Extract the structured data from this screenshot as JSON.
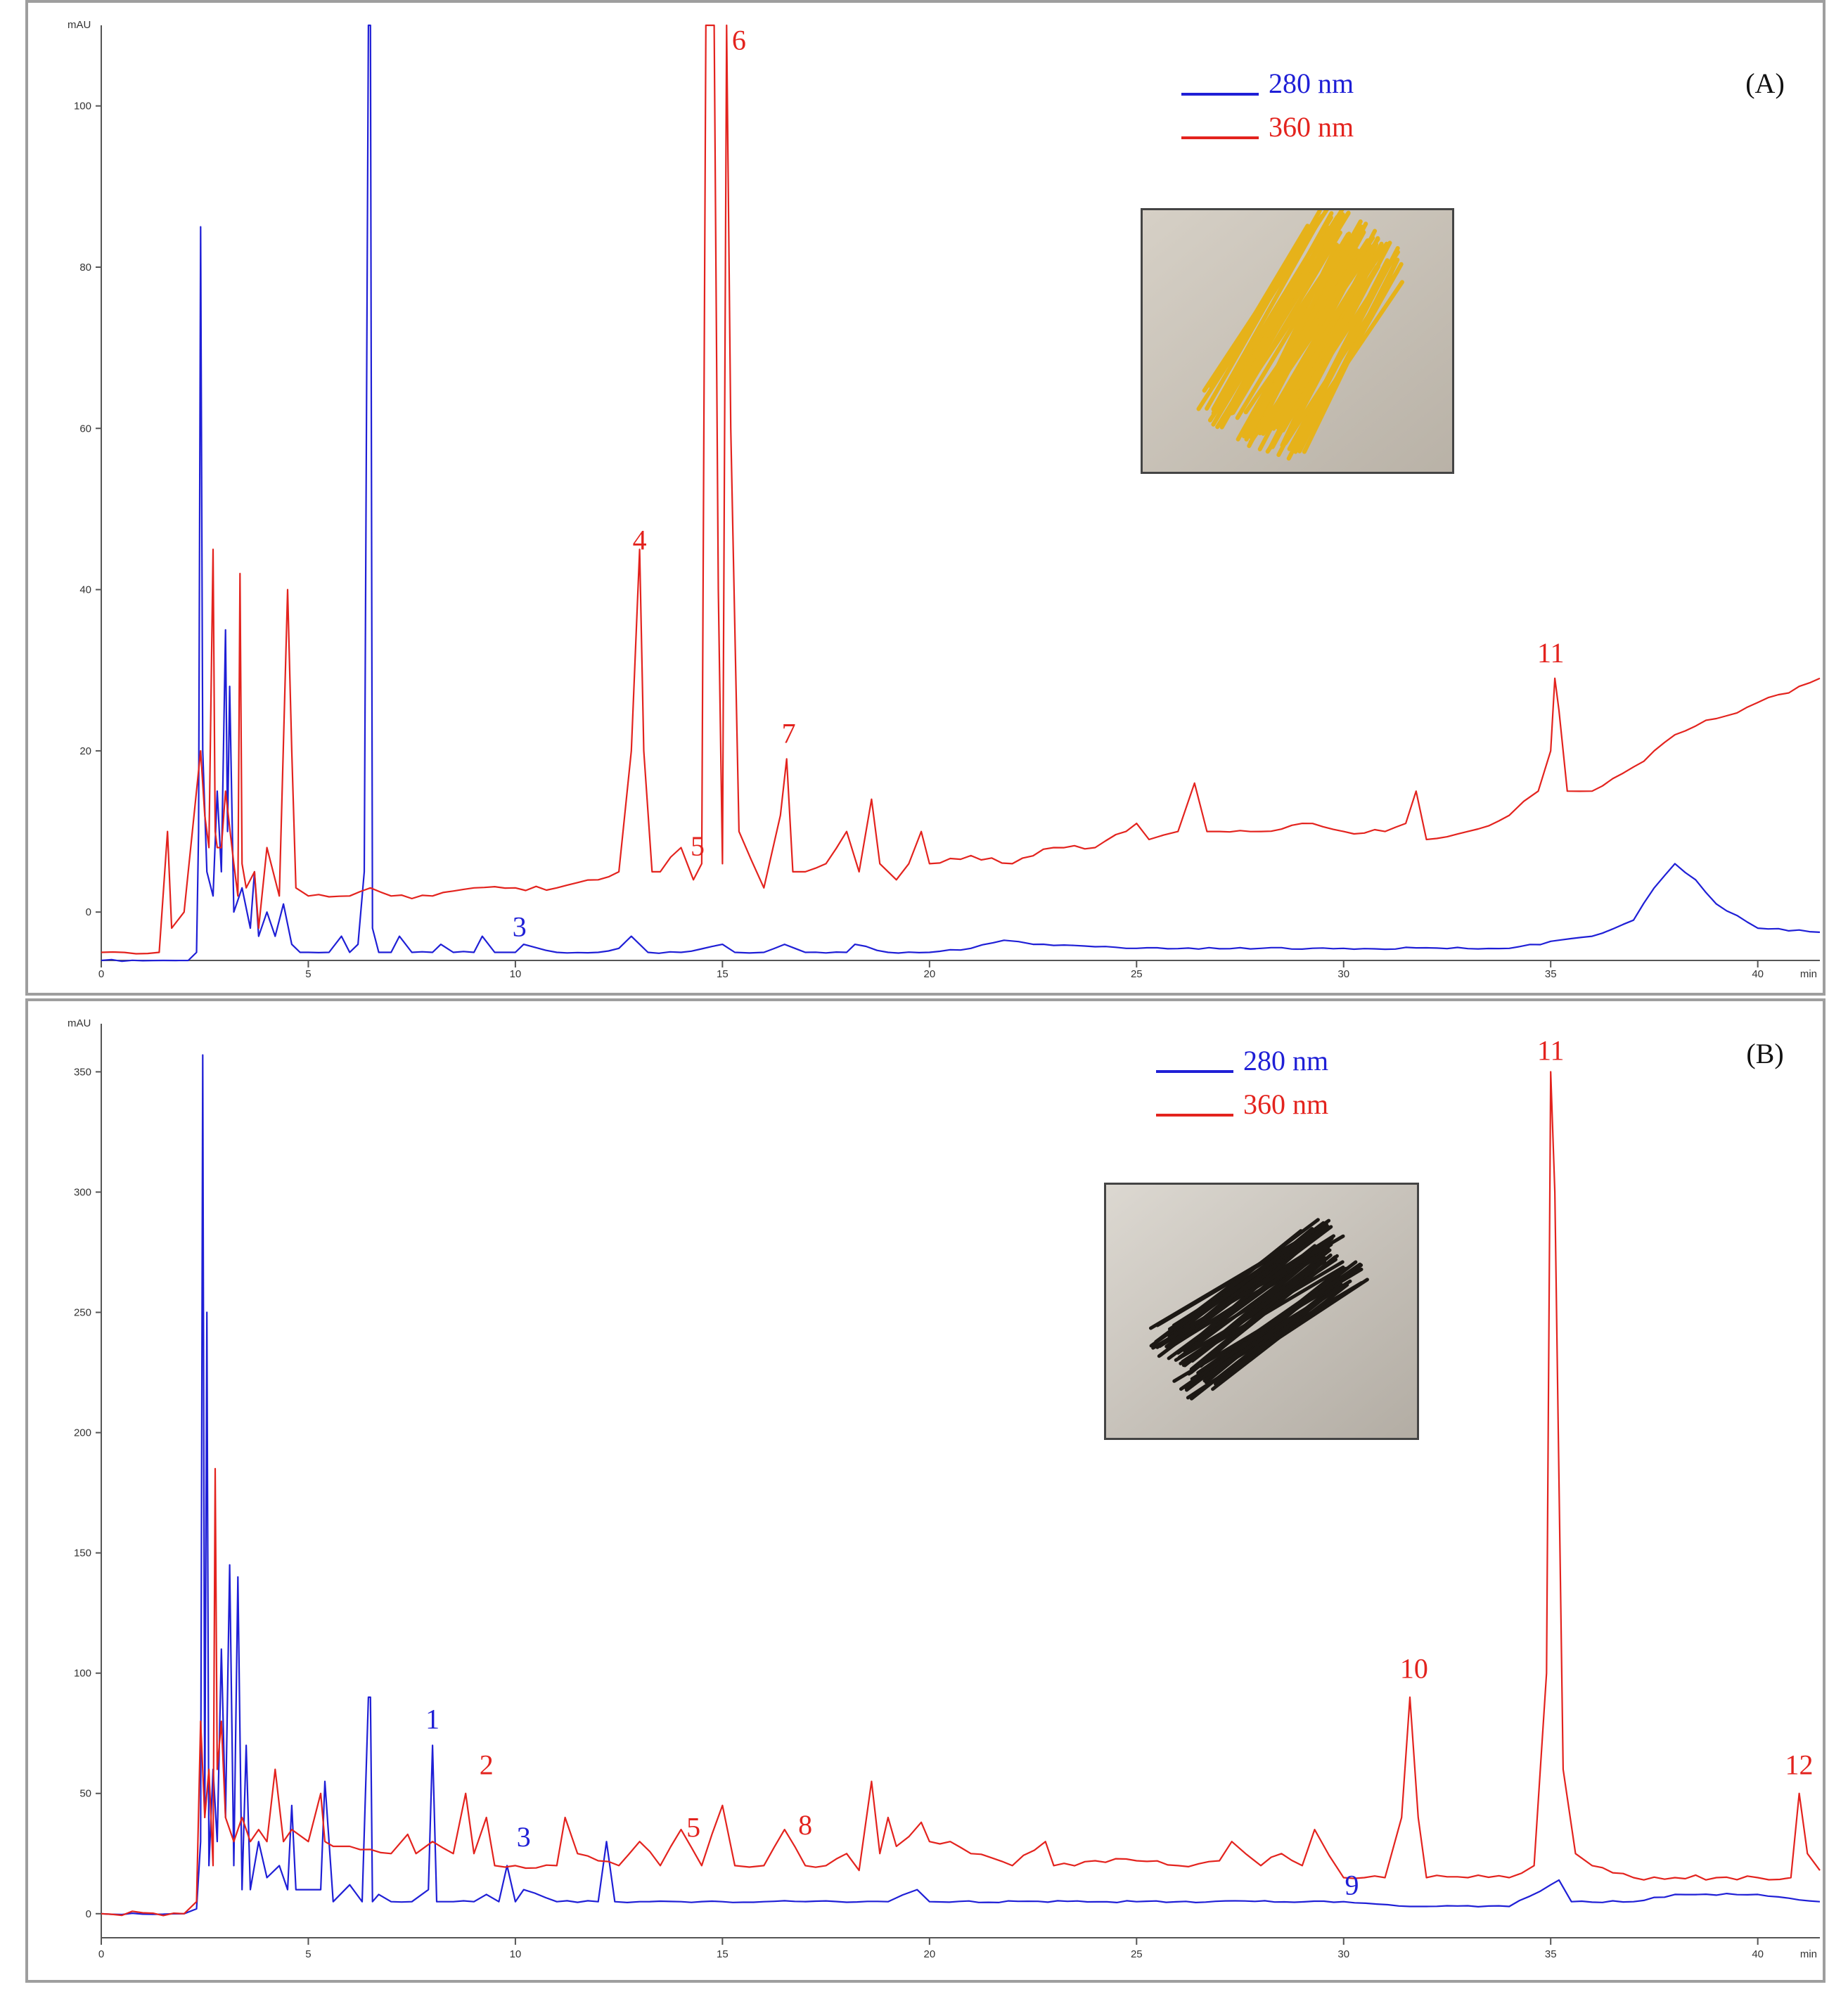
{
  "colors": {
    "blue": "#1f1fd6",
    "red": "#e3231e"
  },
  "chart_data": [
    {
      "type": "line",
      "panel_label": "(A)",
      "ylabel": "mAU",
      "xunit": "min",
      "xlim": [
        0,
        41.5
      ],
      "ylim": [
        -6,
        110
      ],
      "x_ticks": [
        0,
        5,
        10,
        15,
        20,
        25,
        30,
        35,
        40
      ],
      "y_ticks": [
        0,
        20,
        40,
        60,
        80,
        100
      ],
      "legend": [
        {
          "label": "280 nm",
          "color": "#1f1fd6"
        },
        {
          "label": "360 nm",
          "color": "#e3231e"
        }
      ],
      "photo": "yellow-pasta-strands",
      "series": [
        {
          "name": "280 nm",
          "color": "#1f1fd6",
          "x": [
            0,
            1.5,
            2.1,
            2.3,
            2.35,
            2.4,
            2.45,
            2.55,
            2.7,
            2.8,
            2.9,
            3.0,
            3.05,
            3.1,
            3.2,
            3.4,
            3.6,
            3.7,
            3.8,
            4.0,
            4.2,
            4.4,
            4.6,
            4.8,
            5.0,
            5.5,
            5.8,
            6.0,
            6.2,
            6.35,
            6.45,
            6.5,
            6.55,
            6.7,
            7.0,
            7.2,
            7.5,
            8.0,
            8.2,
            8.5,
            9.0,
            9.2,
            9.5,
            10.0,
            10.2,
            11,
            12,
            12.5,
            12.8,
            13.2,
            14,
            15,
            15.3,
            16,
            16.5,
            17,
            18,
            18.2,
            19,
            20,
            21,
            21.8,
            22.5,
            25,
            28,
            30,
            34,
            36,
            37,
            37.5,
            38,
            38.5,
            39,
            40,
            41.5
          ],
          "y": [
            -6,
            -6,
            -6,
            -5,
            10,
            85,
            20,
            5,
            2,
            15,
            5,
            35,
            10,
            28,
            0,
            3,
            -2,
            5,
            -3,
            0,
            -3,
            1,
            -4,
            -5,
            -5,
            -5,
            -3,
            -5,
            -4,
            5,
            110,
            110,
            -2,
            -5,
            -5,
            -3,
            -5,
            -5,
            -4,
            -5,
            -5,
            -3,
            -5,
            -5,
            -4,
            -5,
            -5,
            -4.5,
            -3,
            -5,
            -5,
            -4,
            -5,
            -5,
            -4,
            -5,
            -5,
            -4,
            -5,
            -5,
            -4.5,
            -3.5,
            -4,
            -4.5,
            -4.5,
            -4.5,
            -4.5,
            -3,
            -1,
            3,
            6,
            4,
            1,
            -2,
            -2.5
          ]
        },
        {
          "name": "360 nm",
          "color": "#e3231e",
          "x": [
            0,
            1.4,
            1.6,
            1.7,
            2.0,
            2.4,
            2.5,
            2.6,
            2.7,
            2.75,
            2.8,
            2.9,
            3.0,
            3.2,
            3.3,
            3.35,
            3.4,
            3.5,
            3.7,
            3.8,
            4.0,
            4.3,
            4.5,
            4.6,
            4.7,
            5.0,
            6.0,
            6.5,
            7.0,
            8,
            9,
            10,
            11,
            12,
            12.5,
            12.8,
            13.0,
            13.1,
            13.3,
            13.5,
            14,
            14.3,
            14.5,
            14.6,
            14.8,
            14.9,
            15.0,
            15.1,
            15.2,
            15.4,
            16,
            16.4,
            16.55,
            16.7,
            17,
            17.5,
            18,
            18.3,
            18.6,
            18.8,
            19.2,
            19.5,
            19.8,
            20,
            21,
            22,
            23,
            24,
            25,
            25.3,
            26,
            26.4,
            26.7,
            27,
            28,
            29,
            30,
            31,
            31.5,
            31.75,
            32,
            33,
            34,
            34.7,
            35.0,
            35.1,
            35.2,
            35.4,
            36,
            37,
            37.5,
            38,
            39,
            40,
            41,
            41.5
          ],
          "y": [
            -5,
            -5,
            10,
            -2,
            0,
            20,
            12,
            8,
            45,
            10,
            8,
            8,
            15,
            6,
            2,
            42,
            6,
            3,
            5,
            -2,
            8,
            2,
            40,
            20,
            3,
            2,
            2,
            3,
            2,
            2,
            3,
            3,
            3,
            4,
            5,
            20,
            45,
            20,
            5,
            5,
            8,
            4,
            6,
            110,
            110,
            40,
            6,
            110,
            60,
            10,
            3,
            12,
            19,
            5,
            5,
            6,
            10,
            5,
            14,
            6,
            4,
            6,
            10,
            6,
            7,
            6,
            8,
            8,
            11,
            9,
            10,
            16,
            10,
            10,
            10,
            11,
            10,
            10,
            11,
            15,
            9,
            10,
            12,
            15,
            20,
            29,
            25,
            15,
            15,
            18,
            20,
            22,
            24,
            26,
            28,
            29
          ]
        }
      ],
      "peak_labels": [
        {
          "label": "4",
          "x": 13.0,
          "y": 45,
          "color": "#e3231e"
        },
        {
          "label": "6",
          "x": 15.4,
          "y": 107,
          "color": "#e3231e"
        },
        {
          "label": "5",
          "x": 14.4,
          "y": 7,
          "color": "#e3231e"
        },
        {
          "label": "7",
          "x": 16.6,
          "y": 21,
          "color": "#e3231e"
        },
        {
          "label": "11",
          "x": 35.0,
          "y": 31,
          "color": "#e3231e"
        },
        {
          "label": "3",
          "x": 10.1,
          "y": -3,
          "color": "#1f1fd6"
        }
      ]
    },
    {
      "type": "line",
      "panel_label": "(B)",
      "ylabel": "mAU",
      "xunit": "min",
      "xlim": [
        0,
        41.5
      ],
      "ylim": [
        -10,
        370
      ],
      "x_ticks": [
        0,
        5,
        10,
        15,
        20,
        25,
        30,
        35,
        40
      ],
      "y_ticks": [
        0,
        50,
        100,
        150,
        200,
        250,
        300,
        350
      ],
      "legend": [
        {
          "label": "280 nm",
          "color": "#1f1fd6"
        },
        {
          "label": "360 nm",
          "color": "#e3231e"
        }
      ],
      "photo": "black-pasta-strands",
      "series": [
        {
          "name": "280 nm",
          "color": "#1f1fd6",
          "x": [
            0,
            2.0,
            2.3,
            2.4,
            2.45,
            2.5,
            2.55,
            2.6,
            2.7,
            2.8,
            2.9,
            3.0,
            3.1,
            3.2,
            3.3,
            3.4,
            3.5,
            3.6,
            3.8,
            4.0,
            4.3,
            4.5,
            4.6,
            4.7,
            5.0,
            5.3,
            5.4,
            5.6,
            6.0,
            6.3,
            6.45,
            6.5,
            6.55,
            6.7,
            7.0,
            7.5,
            7.9,
            8.0,
            8.1,
            8.5,
            9.0,
            9.3,
            9.6,
            9.8,
            10,
            10.2,
            11,
            12.0,
            12.2,
            12.4,
            13,
            14,
            15,
            16,
            19,
            19.7,
            20,
            25,
            30,
            31.6,
            32,
            34,
            35.0,
            35.2,
            35.5,
            37,
            38,
            40,
            41.5
          ],
          "y": [
            0,
            0,
            2,
            30,
            357,
            40,
            250,
            20,
            60,
            30,
            110,
            40,
            145,
            20,
            140,
            10,
            70,
            10,
            30,
            15,
            20,
            10,
            45,
            10,
            10,
            10,
            55,
            5,
            12,
            5,
            90,
            90,
            5,
            8,
            5,
            5,
            10,
            70,
            5,
            5,
            5,
            8,
            5,
            20,
            5,
            10,
            5,
            5,
            30,
            5,
            5,
            5,
            5,
            5,
            5,
            10,
            5,
            5,
            5,
            3,
            3,
            3,
            12,
            14,
            5,
            5,
            8,
            8,
            5
          ]
        },
        {
          "name": "360 nm",
          "color": "#e3231e",
          "x": [
            0,
            2.0,
            2.3,
            2.4,
            2.5,
            2.6,
            2.7,
            2.75,
            2.8,
            2.9,
            3.0,
            3.2,
            3.4,
            3.6,
            3.8,
            4.0,
            4.2,
            4.4,
            4.6,
            5.0,
            5.3,
            5.4,
            5.6,
            6,
            7,
            7.4,
            7.6,
            8.0,
            8.5,
            8.8,
            9,
            9.3,
            9.5,
            10,
            11,
            11.2,
            11.5,
            12,
            12.5,
            13,
            13.5,
            14,
            14.5,
            15,
            15.3,
            16,
            16.5,
            17,
            17.5,
            18,
            18.3,
            18.6,
            18.8,
            19,
            19.2,
            19.5,
            19.8,
            20,
            20.5,
            21,
            22,
            22.8,
            23,
            24,
            25,
            26,
            27,
            27.3,
            28,
            28.5,
            29,
            29.3,
            30,
            30.5,
            31,
            31.4,
            31.6,
            31.8,
            32,
            33,
            34,
            34.6,
            34.9,
            35.0,
            35.1,
            35.3,
            35.6,
            36,
            37,
            38,
            39,
            40,
            40.8,
            41.0,
            41.2,
            41.5
          ],
          "y": [
            0,
            0,
            5,
            80,
            40,
            60,
            20,
            185,
            60,
            80,
            40,
            30,
            40,
            30,
            35,
            30,
            60,
            30,
            35,
            30,
            50,
            30,
            28,
            28,
            25,
            33,
            25,
            30,
            25,
            50,
            25,
            40,
            20,
            20,
            20,
            40,
            25,
            22,
            20,
            30,
            20,
            35,
            20,
            45,
            20,
            20,
            35,
            20,
            20,
            25,
            18,
            55,
            25,
            40,
            28,
            32,
            38,
            30,
            30,
            25,
            20,
            30,
            20,
            22,
            22,
            20,
            22,
            30,
            20,
            25,
            20,
            35,
            15,
            15,
            15,
            40,
            90,
            40,
            15,
            15,
            15,
            20,
            100,
            350,
            300,
            60,
            25,
            20,
            15,
            15,
            15,
            15,
            15,
            50,
            25,
            18
          ]
        }
      ],
      "peak_labels": [
        {
          "label": "11",
          "x": 35.0,
          "y": 355,
          "color": "#e3231e"
        },
        {
          "label": "10",
          "x": 31.7,
          "y": 98,
          "color": "#e3231e"
        },
        {
          "label": "12",
          "x": 41.0,
          "y": 58,
          "color": "#e3231e"
        },
        {
          "label": "1",
          "x": 8.0,
          "y": 77,
          "color": "#1f1fd6"
        },
        {
          "label": "2",
          "x": 9.3,
          "y": 58,
          "color": "#e3231e"
        },
        {
          "label": "3",
          "x": 10.2,
          "y": 28,
          "color": "#1f1fd6"
        },
        {
          "label": "5",
          "x": 14.3,
          "y": 32,
          "color": "#e3231e"
        },
        {
          "label": "8",
          "x": 17.0,
          "y": 33,
          "color": "#e3231e"
        },
        {
          "label": "9",
          "x": 30.2,
          "y": 8,
          "color": "#1f1fd6"
        }
      ]
    }
  ]
}
